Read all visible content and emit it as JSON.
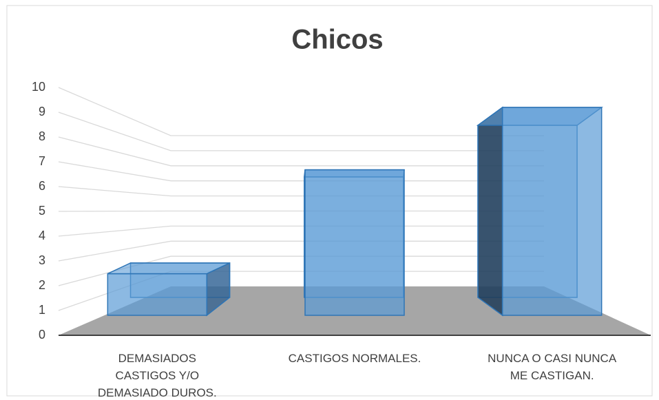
{
  "chart_data": {
    "type": "bar3d",
    "title": "Chicos",
    "categories": [
      "DEMASIADOS CASTIGOS Y/O DEMASIADO DUROS.",
      "CASTIGOS NORMALES.",
      "NUNCA O CASI NUNCA ME CASTIGAN."
    ],
    "values": [
      2,
      7,
      10
    ],
    "color": "#5b9bd5",
    "ylim": [
      0,
      10
    ],
    "yticks": [
      0,
      1,
      2,
      3,
      4,
      5,
      6,
      7,
      8,
      9,
      10
    ],
    "grid": true
  }
}
